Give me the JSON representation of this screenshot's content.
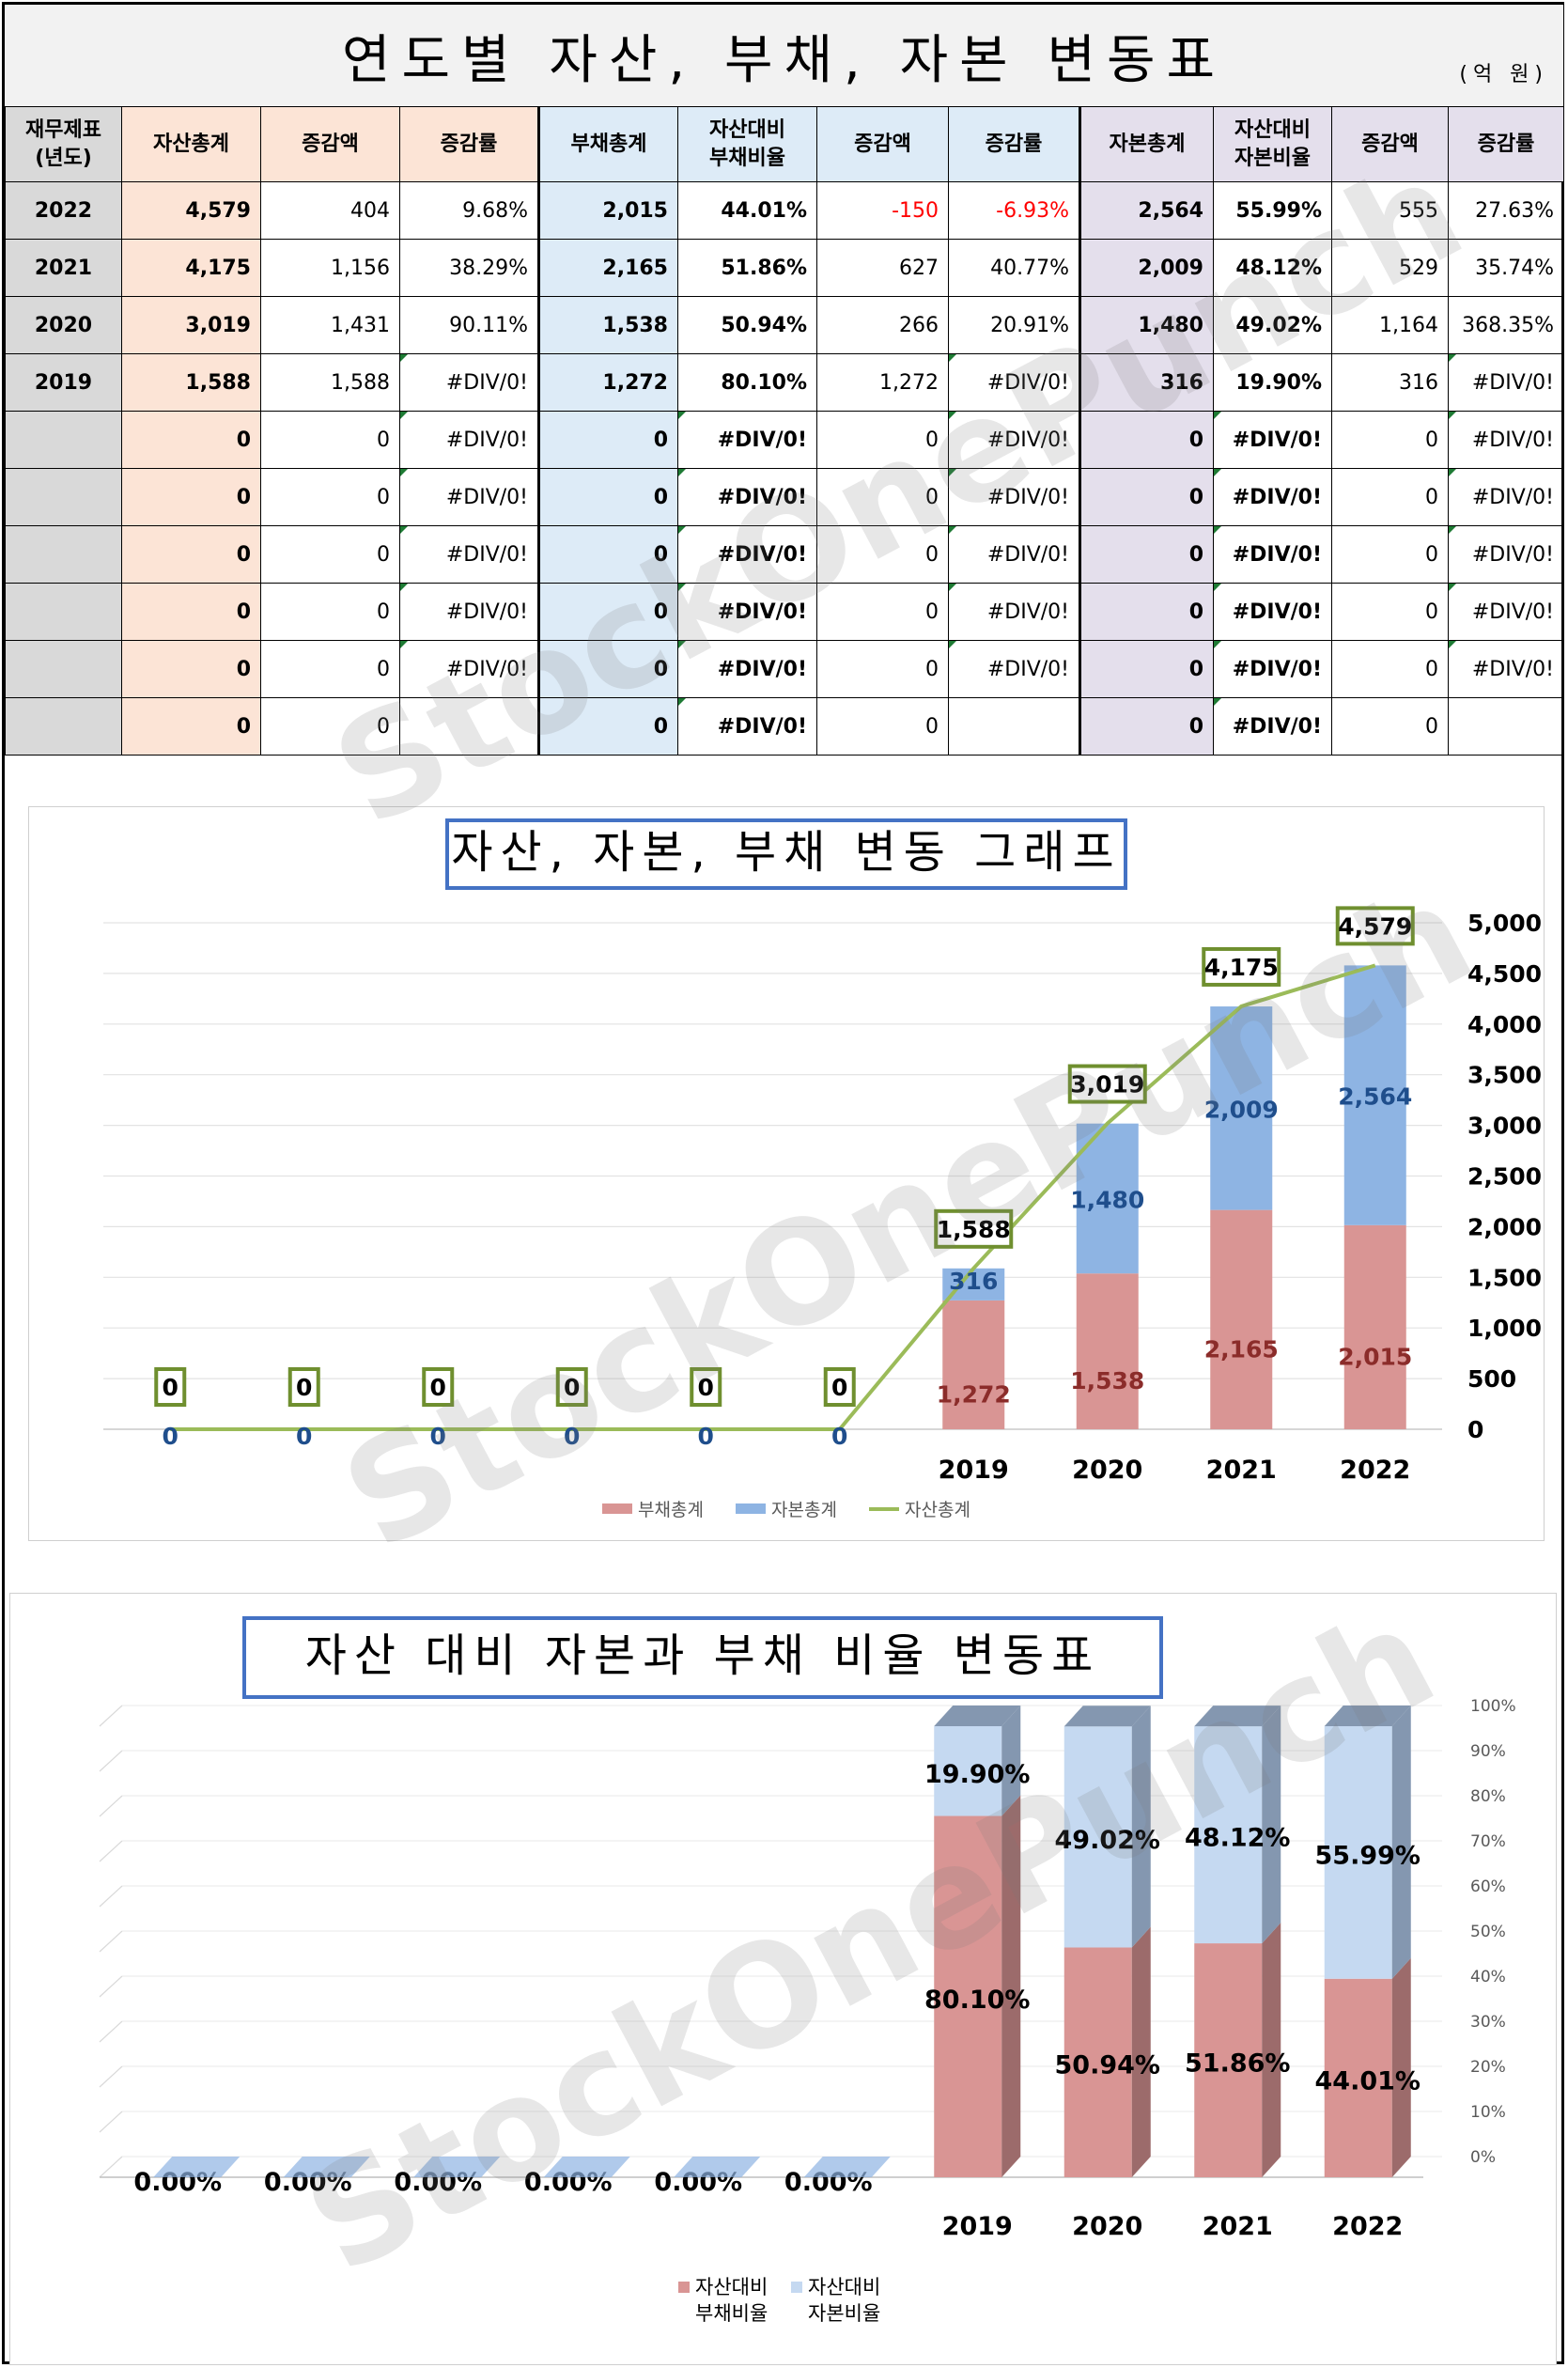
{
  "page": {
    "title": "연도별 자산, 부채, 자본 변동표",
    "unit": "(억 원)",
    "watermark": "StockOnePunch"
  },
  "table": {
    "headers": [
      "재무제표\n(년도)",
      "자산총계",
      "증감액",
      "증감률",
      "부채총계",
      "자산대비\n부채비율",
      "증감액",
      "증감률",
      "자본총계",
      "자산대비\n자본비율",
      "증감액",
      "증감률"
    ],
    "rows": [
      [
        "2022",
        "4,579",
        "404",
        "9.68%",
        "2,015",
        "44.01%",
        "-150",
        "-6.93%",
        "2,564",
        "55.99%",
        "555",
        "27.63%"
      ],
      [
        "2021",
        "4,175",
        "1,156",
        "38.29%",
        "2,165",
        "51.86%",
        "627",
        "40.77%",
        "2,009",
        "48.12%",
        "529",
        "35.74%"
      ],
      [
        "2020",
        "3,019",
        "1,431",
        "90.11%",
        "1,538",
        "50.94%",
        "266",
        "20.91%",
        "1,480",
        "49.02%",
        "1,164",
        "368.35%"
      ],
      [
        "2019",
        "1,588",
        "1,588",
        "#DIV/0!",
        "1,272",
        "80.10%",
        "1,272",
        "#DIV/0!",
        "316",
        "19.90%",
        "316",
        "#DIV/0!"
      ],
      [
        "",
        "0",
        "0",
        "#DIV/0!",
        "0",
        "#DIV/0!",
        "0",
        "#DIV/0!",
        "0",
        "#DIV/0!",
        "0",
        "#DIV/0!"
      ],
      [
        "",
        "0",
        "0",
        "#DIV/0!",
        "0",
        "#DIV/0!",
        "0",
        "#DIV/0!",
        "0",
        "#DIV/0!",
        "0",
        "#DIV/0!"
      ],
      [
        "",
        "0",
        "0",
        "#DIV/0!",
        "0",
        "#DIV/0!",
        "0",
        "#DIV/0!",
        "0",
        "#DIV/0!",
        "0",
        "#DIV/0!"
      ],
      [
        "",
        "0",
        "0",
        "#DIV/0!",
        "0",
        "#DIV/0!",
        "0",
        "#DIV/0!",
        "0",
        "#DIV/0!",
        "0",
        "#DIV/0!"
      ],
      [
        "",
        "0",
        "0",
        "#DIV/0!",
        "0",
        "#DIV/0!",
        "0",
        "#DIV/0!",
        "0",
        "#DIV/0!",
        "0",
        "#DIV/0!"
      ],
      [
        "",
        "0",
        "0",
        "",
        "0",
        "#DIV/0!",
        "0",
        "",
        "0",
        "#DIV/0!",
        "0",
        ""
      ]
    ],
    "colors": {
      "year": "#d9d9d9",
      "asset": "#fce4d6",
      "liability": "#ddebf7",
      "equity": "#e4dfec",
      "negative": "#ff0000"
    }
  },
  "chart_data": [
    {
      "type": "bar",
      "stacked": true,
      "title": "자산, 자본, 부채 변동 그래프",
      "categories": [
        "",
        "",
        "",
        "",
        "",
        "",
        "2019",
        "2020",
        "2021",
        "2022"
      ],
      "series": [
        {
          "name": "부채총계",
          "type": "bar",
          "color": "#d99594",
          "label_color": "#8b2c2a",
          "values": [
            0,
            0,
            0,
            0,
            0,
            0,
            1272,
            1538,
            2165,
            2015
          ]
        },
        {
          "name": "자본총계",
          "type": "bar",
          "color": "#8eb4e3",
          "label_color": "#1f4e8c",
          "values": [
            0,
            0,
            0,
            0,
            0,
            0,
            316,
            1480,
            2009,
            2564
          ]
        },
        {
          "name": "자산총계",
          "type": "line",
          "color": "#9bbb59",
          "values": [
            0,
            0,
            0,
            0,
            0,
            0,
            1588,
            3019,
            4175,
            4579
          ]
        }
      ],
      "yticks": [
        "5,000",
        "4,500",
        "4,000",
        "3,500",
        "3,000",
        "2,500",
        "2,000",
        "1,500",
        "1,000",
        "500",
        "0"
      ],
      "ylim": [
        0,
        5000
      ],
      "yaxis_side": "right",
      "legend": "bottom",
      "grid": true
    },
    {
      "type": "bar",
      "stacked": true,
      "percent": true,
      "title": "자산 대비 자본과 부채 비율 변동표",
      "categories": [
        "",
        "",
        "",
        "",
        "",
        "",
        "2019",
        "2020",
        "2021",
        "2022"
      ],
      "series": [
        {
          "name": "자산대비\n부채비율",
          "color": "#d99594",
          "values": [
            0,
            0,
            0,
            0,
            0,
            0,
            80.1,
            50.94,
            51.86,
            44.01
          ]
        },
        {
          "name": "자산대비\n자본비율",
          "color": "#c5d9f1",
          "values": [
            0,
            0,
            0,
            0,
            0,
            0,
            19.9,
            49.02,
            48.12,
            55.99
          ]
        }
      ],
      "zero_labels": [
        "0.00%",
        "0.00%",
        "0.00%",
        "0.00%",
        "0.00%",
        "0.00%"
      ],
      "yticks": [
        "100%",
        "90%",
        "80%",
        "70%",
        "60%",
        "50%",
        "40%",
        "30%",
        "20%",
        "10%",
        "0%"
      ],
      "ylim": [
        0,
        100
      ],
      "yaxis_side": "right",
      "legend": "bottom",
      "grid": true
    }
  ]
}
